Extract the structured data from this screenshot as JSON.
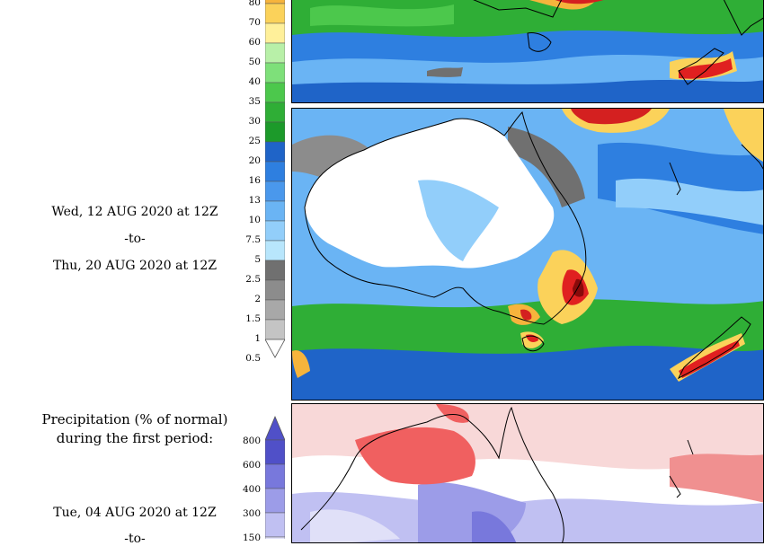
{
  "second_period": {
    "start": "Wed, 12 AUG 2020 at 12Z",
    "separator": "-to-",
    "end": "Thu, 20 AUG 2020 at 12Z"
  },
  "precip_scale": {
    "labels": [
      "80",
      "70",
      "60",
      "50",
      "40",
      "35",
      "30",
      "25",
      "20",
      "16",
      "13",
      "10",
      "7.5",
      "5",
      "2.5",
      "2",
      "1.5",
      "1",
      "0.5"
    ],
    "colors": [
      "#f6b43c",
      "#fbd25a",
      "#fff09a",
      "#b8f0a8",
      "#7ee07a",
      "#4cc84c",
      "#2fae36",
      "#1c9a2a",
      "#1f64c8",
      "#2e7fe0",
      "#4a98ec",
      "#6ab4f4",
      "#92cefa",
      "#b8e6fc",
      "#707070",
      "#8c8c8c",
      "#a8a8a8",
      "#c4c4c4"
    ]
  },
  "anomaly": {
    "title": "Precipitation (% of normal)\nduring the first period:",
    "start": "Tue, 04 AUG 2020 at 12Z",
    "separator": "-to-",
    "scale_labels": [
      "800",
      "600",
      "400",
      "300",
      "150"
    ],
    "colors": [
      "#5050c8",
      "#7878dc",
      "#9c9ce8",
      "#c0c0f2",
      "#e0e0f8"
    ]
  }
}
